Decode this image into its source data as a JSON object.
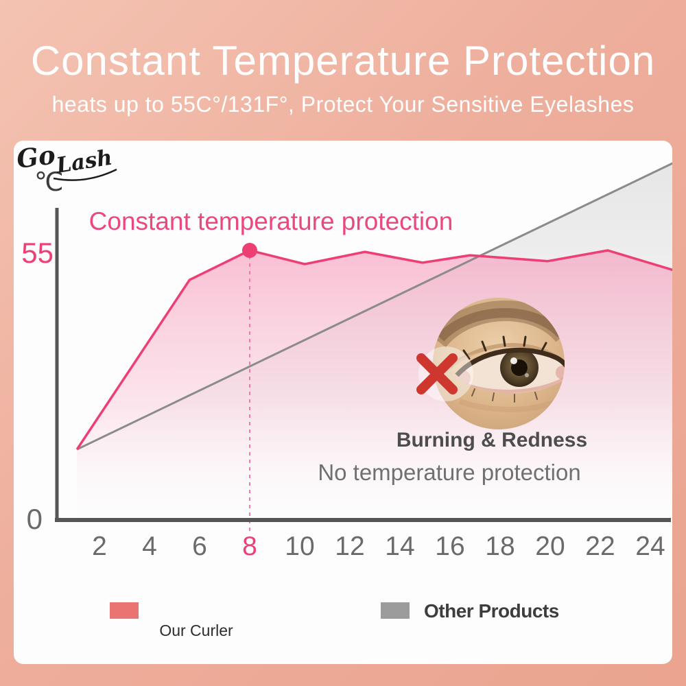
{
  "header": {
    "title": "Constant Temperature Protection",
    "subtitle": "heats up to 55C°/131F°, Protect Your Sensitive Eyelashes"
  },
  "chart_data": {
    "type": "line",
    "annotation": "Constant temperature protection",
    "y_unit": "℃",
    "y_ticks": [
      "55",
      "0"
    ],
    "x_ticks": [
      2,
      4,
      6,
      8,
      10,
      12,
      14,
      16,
      18,
      20,
      22,
      24
    ],
    "x_highlight": 8,
    "xlim": [
      0,
      26
    ],
    "ylim": [
      0,
      75
    ],
    "grid": false,
    "legend_position": "bottom",
    "series": [
      {
        "name": "Our Curler",
        "color": "#ee3f74",
        "fill_top": "rgba(246,153,186,0.60)",
        "points": [
          [
            1.1,
            14.4
          ],
          [
            5.6,
            49.0
          ],
          [
            8,
            55
          ],
          [
            10.2,
            52.2
          ],
          [
            12.6,
            54.7
          ],
          [
            14.9,
            52.5
          ],
          [
            16.8,
            54.0
          ],
          [
            19.9,
            52.8
          ],
          [
            22.3,
            55.0
          ],
          [
            24.9,
            51.0
          ]
        ],
        "marker": {
          "x": 8,
          "y": 55
        }
      },
      {
        "name": "Other Products",
        "color": "#8b8b8b",
        "fill_top": "rgba(205,205,205,0.45)",
        "points": [
          [
            1.1,
            14.4
          ],
          [
            24.9,
            72.8
          ]
        ]
      }
    ]
  },
  "overlay": {
    "warning_title": "Burning & Redness",
    "warning_subtitle": "No temperature protection",
    "x_mark_icon": "cross-icon",
    "x_mark_color": "#ce372d"
  },
  "legend": {
    "our_brand": "Go Lash",
    "our_label": "Our Curler",
    "our_color": "#ea7471",
    "other_label": "Other Products",
    "other_color": "#9c9c9c"
  },
  "colors": {
    "background_top": "#f4c3b2",
    "background_bottom": "#eaa48f",
    "card": "#fdfdfd",
    "accent_pink": "#ec4076",
    "axis": "#565656"
  }
}
